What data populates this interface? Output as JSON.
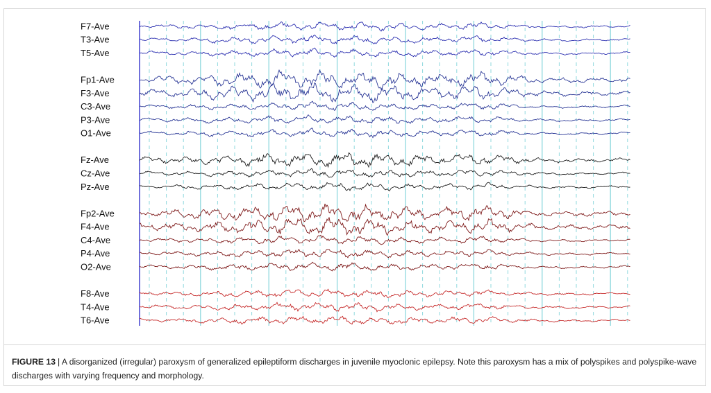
{
  "figure": {
    "groups": [
      {
        "color": "#2b2fb0",
        "channels": [
          "F7-Ave",
          "T3-Ave",
          "T5-Ave"
        ]
      },
      {
        "color": "#2a3796",
        "channels": [
          "Fp1-Ave",
          "F3-Ave",
          "C3-Ave",
          "P3-Ave",
          "O1-Ave"
        ]
      },
      {
        "color": "#1e1e1e",
        "channels": [
          "Fz-Ave",
          "Cz-Ave",
          "Pz-Ave"
        ]
      },
      {
        "color": "#7e1a1a",
        "channels": [
          "Fp2-Ave",
          "F4-Ave",
          "C4-Ave",
          "P4-Ave",
          "O2-Ave"
        ]
      },
      {
        "color": "#c62a2a",
        "channels": [
          "F8-Ave",
          "T4-Ave",
          "T6-Ave"
        ]
      }
    ],
    "caption": {
      "label": "FIGURE 13",
      "text": "| A disorganized (irregular) paroxysm of generalized epileptiform discharges in juvenile myoclonic epilepsy. Note this paroxysm has a mix of polyspikes and polyspike-wave discharges with varying frequency and morphology."
    }
  }
}
